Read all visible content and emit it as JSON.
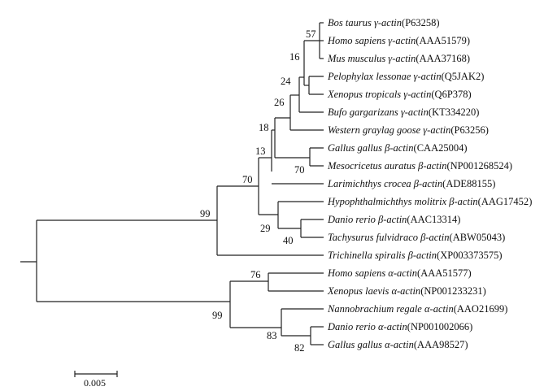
{
  "tree": {
    "taxa": [
      {
        "species": "Bos taurus γ-actin",
        "accession": "P63258"
      },
      {
        "species": "Homo sapiens γ-actin",
        "accession": "AAA51579"
      },
      {
        "species": "Mus musculus γ-actin",
        "accession": "AAA37168"
      },
      {
        "species": "Pelophylax lessonae γ-actin",
        "accession": "Q5JAK2"
      },
      {
        "species": "Xenopus tropicals γ-actin",
        "accession": "Q6P378"
      },
      {
        "species": "Bufo gargarizans γ-actin",
        "accession": "KT334220"
      },
      {
        "species": "Western graylag goose γ-actin",
        "accession": "P63256"
      },
      {
        "species": "Gallus gallus β-actin",
        "accession": "CAA25004"
      },
      {
        "species": "Mesocricetus auratus β-actin",
        "accession": "NP001268524"
      },
      {
        "species": "Larimichthys crocea β-actin",
        "accession": "ADE88155"
      },
      {
        "species": "Hypophthalmichthys molitrix β-actin",
        "accession": "AAG17452"
      },
      {
        "species": "Danio rerio β-actin",
        "accession": "AAC13314"
      },
      {
        "species": "Tachysurus fulvidraco β-actin",
        "accession": "ABW05043"
      },
      {
        "species": "Trichinella spiralis β-actin",
        "accession": "XP003373575"
      },
      {
        "species": "Homo sapiens α-actin",
        "accession": "AAA51577"
      },
      {
        "species": "Xenopus laevis α-actin",
        "accession": "NP001233231"
      },
      {
        "species": "Nannobrachium regale α-actin",
        "accession": "AAO21699"
      },
      {
        "species": "Danio rerio α-actin",
        "accession": "NP001002066"
      },
      {
        "species": "Gallus gallus α-actin",
        "accession": "AAA98527"
      }
    ],
    "bootstrap": [
      "57",
      "16",
      "24",
      "26",
      "18",
      "13",
      "70",
      "70",
      "99",
      "29",
      "40",
      "76",
      "99",
      "83",
      "82"
    ],
    "scale_bar": "0.005"
  }
}
